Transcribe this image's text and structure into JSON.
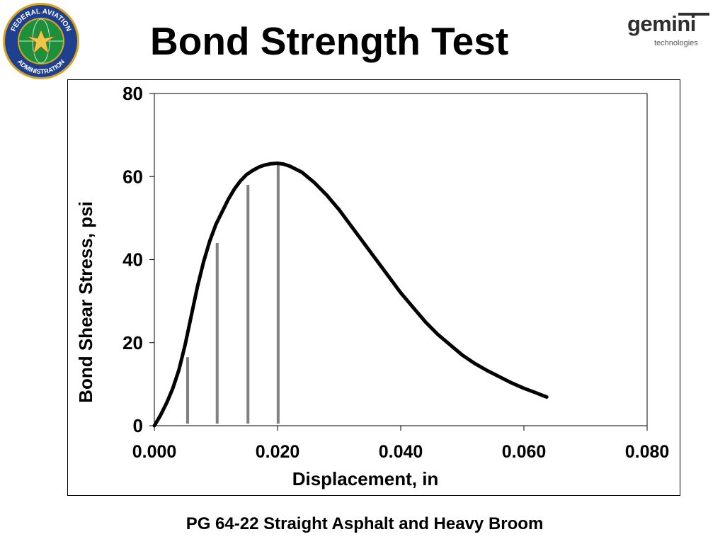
{
  "header": {
    "title": "Bond Strength Test",
    "faa_seal": {
      "icon": "faa-seal-icon",
      "ring_text_top": "FEDERAL AVIATION",
      "ring_text_bottom": "ADMINISTRATION",
      "colors": {
        "ring": "#1f3f8f",
        "rim": "#d9a520",
        "globe": "#1e8f3c"
      }
    },
    "gemini_logo": {
      "icon": "gemini-logo-icon",
      "word": "gemini",
      "subtitle": "technologies"
    }
  },
  "caption": "PG 64-22 Straight Asphalt and Heavy Broom",
  "chart_data": {
    "type": "line",
    "title": "",
    "xlabel": "Displacement, in",
    "ylabel": "Bond Shear Stress, psi",
    "xlim": [
      0,
      0.08
    ],
    "ylim": [
      0,
      80
    ],
    "x_ticks": [
      0,
      0.02,
      0.04,
      0.06,
      0.08
    ],
    "x_tick_labels": [
      "0.000",
      "0.020",
      "0.040",
      "0.060",
      "0.080"
    ],
    "y_ticks": [
      0,
      20,
      40,
      60,
      80
    ],
    "y_tick_labels": [
      "0",
      "20",
      "40",
      "60",
      "80"
    ],
    "grid": false,
    "legend": "none",
    "line_color": "#000000",
    "marker_color": "#808080",
    "series": [
      {
        "x": [
          0,
          0.001,
          0.002,
          0.003,
          0.004,
          0.005,
          0.006,
          0.007,
          0.008,
          0.009,
          0.01,
          0.011,
          0.012,
          0.013,
          0.014,
          0.015,
          0.016,
          0.017,
          0.018,
          0.019,
          0.02,
          0.021,
          0.022,
          0.024,
          0.026,
          0.028,
          0.03,
          0.032,
          0.034,
          0.036,
          0.038,
          0.04,
          0.042,
          0.044,
          0.046,
          0.048,
          0.05,
          0.052,
          0.054,
          0.056,
          0.058,
          0.06,
          0.062,
          0.0637
        ],
        "y": [
          0,
          2.5,
          5.5,
          9,
          13.5,
          19.5,
          26.5,
          33.5,
          39.5,
          44.5,
          48.5,
          51.5,
          54.5,
          57,
          59,
          60.5,
          61.5,
          62.3,
          62.8,
          63.1,
          63.2,
          63,
          62.5,
          61,
          58.5,
          55.5,
          52,
          48,
          44,
          40,
          36,
          32,
          28.5,
          25,
          22,
          19.5,
          17,
          15,
          13.3,
          11.8,
          10.3,
          9,
          7.9,
          6.9
        ]
      }
    ],
    "vertical_markers": [
      {
        "x": 0.0054,
        "y": 16.5
      },
      {
        "x": 0.0102,
        "y": 44
      },
      {
        "x": 0.0152,
        "y": 58
      },
      {
        "x": 0.0201,
        "y": 63
      }
    ]
  }
}
